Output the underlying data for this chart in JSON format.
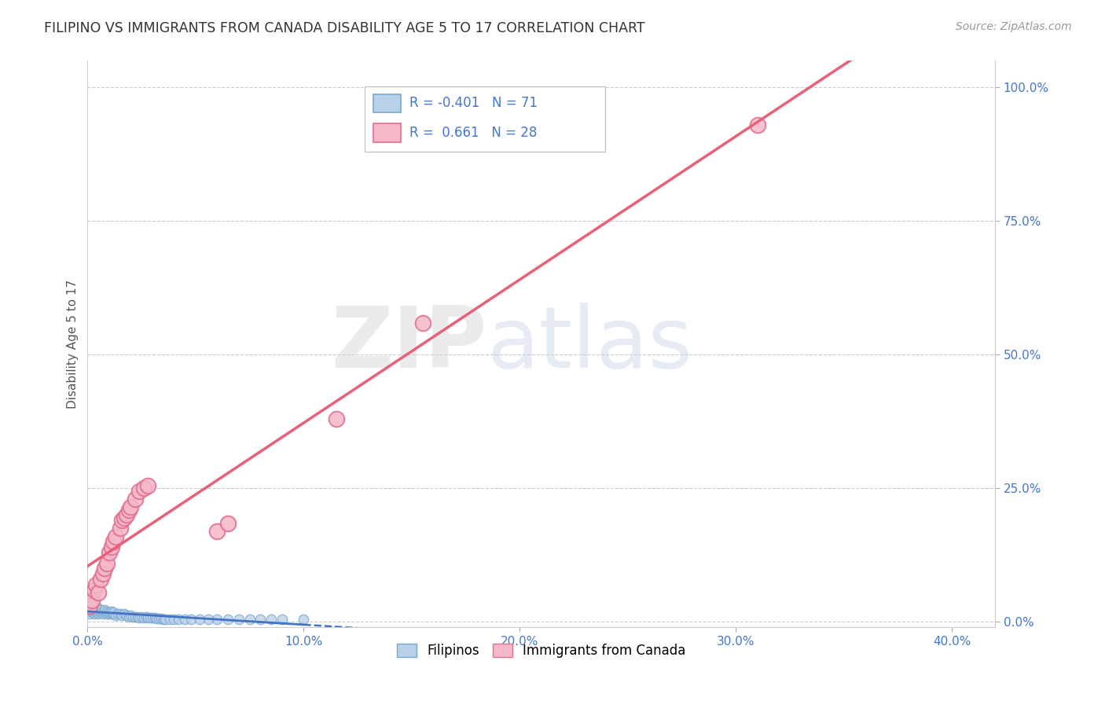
{
  "title": "FILIPINO VS IMMIGRANTS FROM CANADA DISABILITY AGE 5 TO 17 CORRELATION CHART",
  "source": "Source: ZipAtlas.com",
  "ylabel": "Disability Age 5 to 17",
  "xlabel_vals": [
    0.0,
    0.1,
    0.2,
    0.3,
    0.4
  ],
  "ylabel_vals": [
    0.0,
    0.25,
    0.5,
    0.75,
    1.0
  ],
  "xlim": [
    0.0,
    0.42
  ],
  "ylim": [
    -0.01,
    1.05
  ],
  "filipinos_x": [
    0.0,
    0.0,
    0.001,
    0.001,
    0.001,
    0.002,
    0.002,
    0.002,
    0.002,
    0.003,
    0.003,
    0.003,
    0.004,
    0.004,
    0.004,
    0.005,
    0.005,
    0.005,
    0.006,
    0.006,
    0.007,
    0.007,
    0.008,
    0.008,
    0.009,
    0.009,
    0.01,
    0.01,
    0.011,
    0.011,
    0.012,
    0.012,
    0.013,
    0.014,
    0.015,
    0.016,
    0.017,
    0.018,
    0.019,
    0.02,
    0.021,
    0.022,
    0.023,
    0.024,
    0.025,
    0.026,
    0.027,
    0.028,
    0.029,
    0.03,
    0.031,
    0.032,
    0.033,
    0.034,
    0.035,
    0.036,
    0.038,
    0.04,
    0.042,
    0.045,
    0.048,
    0.052,
    0.056,
    0.06,
    0.065,
    0.07,
    0.075,
    0.08,
    0.085,
    0.09,
    0.1
  ],
  "filipinos_y": [
    0.02,
    0.025,
    0.015,
    0.03,
    0.035,
    0.018,
    0.022,
    0.028,
    0.032,
    0.015,
    0.02,
    0.025,
    0.018,
    0.022,
    0.03,
    0.015,
    0.02,
    0.025,
    0.018,
    0.022,
    0.015,
    0.02,
    0.018,
    0.022,
    0.015,
    0.02,
    0.015,
    0.018,
    0.015,
    0.02,
    0.015,
    0.018,
    0.012,
    0.015,
    0.015,
    0.012,
    0.015,
    0.012,
    0.01,
    0.012,
    0.01,
    0.01,
    0.01,
    0.008,
    0.01,
    0.008,
    0.01,
    0.008,
    0.008,
    0.008,
    0.008,
    0.006,
    0.006,
    0.006,
    0.005,
    0.005,
    0.005,
    0.005,
    0.005,
    0.005,
    0.005,
    0.005,
    0.005,
    0.005,
    0.005,
    0.005,
    0.005,
    0.005,
    0.005,
    0.005,
    0.005
  ],
  "canada_x": [
    0.001,
    0.002,
    0.003,
    0.004,
    0.005,
    0.006,
    0.007,
    0.008,
    0.009,
    0.01,
    0.011,
    0.012,
    0.013,
    0.015,
    0.016,
    0.017,
    0.018,
    0.019,
    0.02,
    0.022,
    0.024,
    0.026,
    0.028,
    0.06,
    0.065,
    0.115,
    0.155,
    0.31
  ],
  "canada_y": [
    0.03,
    0.04,
    0.06,
    0.07,
    0.055,
    0.08,
    0.09,
    0.1,
    0.11,
    0.13,
    0.14,
    0.15,
    0.16,
    0.175,
    0.19,
    0.195,
    0.2,
    0.21,
    0.215,
    0.23,
    0.245,
    0.25,
    0.255,
    0.17,
    0.185,
    0.38,
    0.56,
    0.93
  ],
  "filipinos_color": "#b8d0e8",
  "filipinos_edge_color": "#7aa8d0",
  "canada_color": "#f5b8c8",
  "canada_edge_color": "#e07090",
  "trendline_filipinos_color": "#4472c4",
  "trendline_canada_color": "#e8607a",
  "filipinos_R": -0.401,
  "filipinos_N": 71,
  "canada_R": 0.661,
  "canada_N": 28,
  "watermark_zip": "ZIP",
  "watermark_atlas": "atlas",
  "background_color": "#ffffff",
  "grid_color": "#cccccc",
  "tick_color": "#4477cc",
  "title_color": "#333333",
  "ylabel_color": "#555555"
}
